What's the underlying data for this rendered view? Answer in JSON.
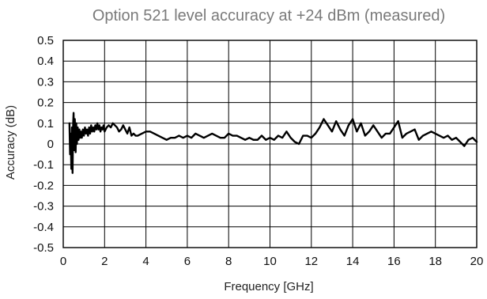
{
  "chart_data": {
    "type": "line",
    "title": "Option 521 level accuracy at +24 dBm (measured)",
    "xlabel": "Frequency [GHz]",
    "ylabel": "Accuracy (dB)",
    "xlim": [
      0,
      20
    ],
    "ylim": [
      -0.5,
      0.5
    ],
    "x_ticks": [
      0,
      2,
      4,
      6,
      8,
      10,
      12,
      14,
      16,
      18,
      20
    ],
    "x_tick_labels": [
      "0",
      "2",
      "4",
      "6",
      "8",
      "10",
      "12",
      "14",
      "16",
      "18",
      "20"
    ],
    "y_ticks": [
      0.5,
      0.4,
      0.3,
      0.2,
      0.1,
      0,
      -0.1,
      -0.2,
      -0.3,
      -0.4,
      -0.5
    ],
    "y_tick_labels": [
      "0.5",
      "0.4",
      "0.3",
      "0.2",
      "0.1",
      "0",
      "-0.1",
      "-0.2",
      "-0.3",
      "-0.4",
      "-0.5"
    ],
    "grid": true,
    "line_color": "#000000",
    "title_color": "#7a7a7a",
    "series": [
      {
        "x": [
          0.3,
          0.33,
          0.36,
          0.39,
          0.42,
          0.45,
          0.48,
          0.5,
          0.53,
          0.56,
          0.6,
          0.63,
          0.66,
          0.7,
          0.74,
          0.78,
          0.82,
          0.86,
          0.9,
          0.95,
          1.0,
          1.05,
          1.1,
          1.15,
          1.2,
          1.25,
          1.3,
          1.35,
          1.4,
          1.45,
          1.5,
          1.55,
          1.6,
          1.65,
          1.7,
          1.75,
          1.8,
          1.85,
          1.9,
          1.95,
          2.0,
          2.1,
          2.2,
          2.3,
          2.4,
          2.5,
          2.6,
          2.7,
          2.8,
          2.9,
          3.0,
          3.1,
          3.2,
          3.3,
          3.4,
          3.5,
          3.6,
          3.8,
          4.0,
          4.2,
          4.4,
          4.6,
          4.8,
          5.0,
          5.2,
          5.4,
          5.6,
          5.8,
          6.0,
          6.2,
          6.4,
          6.6,
          6.8,
          7.0,
          7.2,
          7.4,
          7.6,
          7.8,
          8.0,
          8.2,
          8.4,
          8.6,
          8.8,
          9.0,
          9.2,
          9.4,
          9.6,
          9.8,
          10.0,
          10.2,
          10.4,
          10.6,
          10.8,
          11.0,
          11.2,
          11.4,
          11.6,
          11.8,
          12.0,
          12.2,
          12.4,
          12.6,
          12.8,
          13.0,
          13.2,
          13.4,
          13.6,
          13.8,
          14.0,
          14.2,
          14.4,
          14.6,
          14.8,
          15.0,
          15.2,
          15.4,
          15.6,
          15.8,
          16.0,
          16.2,
          16.4,
          16.6,
          16.8,
          17.0,
          17.2,
          17.4,
          17.6,
          17.8,
          18.0,
          18.2,
          18.4,
          18.6,
          18.8,
          19.0,
          19.2,
          19.4,
          19.6,
          19.8,
          20.0
        ],
        "y": [
          0.1,
          -0.05,
          0.05,
          -0.12,
          0.08,
          -0.14,
          0.1,
          0.15,
          -0.03,
          0.12,
          -0.04,
          0.1,
          0.0,
          0.08,
          0.02,
          0.07,
          0.03,
          0.06,
          0.03,
          0.07,
          0.04,
          0.08,
          0.05,
          0.07,
          0.04,
          0.08,
          0.05,
          0.09,
          0.06,
          0.08,
          0.06,
          0.09,
          0.07,
          0.1,
          0.07,
          0.09,
          0.06,
          0.08,
          0.07,
          0.09,
          0.06,
          0.08,
          0.09,
          0.08,
          0.1,
          0.09,
          0.08,
          0.06,
          0.07,
          0.09,
          0.07,
          0.05,
          0.08,
          0.04,
          0.05,
          0.04,
          0.04,
          0.05,
          0.06,
          0.06,
          0.05,
          0.04,
          0.03,
          0.02,
          0.03,
          0.03,
          0.04,
          0.03,
          0.04,
          0.03,
          0.05,
          0.04,
          0.03,
          0.04,
          0.05,
          0.04,
          0.03,
          0.03,
          0.05,
          0.04,
          0.04,
          0.03,
          0.02,
          0.03,
          0.02,
          0.02,
          0.04,
          0.02,
          0.03,
          0.02,
          0.04,
          0.03,
          0.06,
          0.03,
          0.01,
          0.0,
          0.04,
          0.04,
          0.03,
          0.05,
          0.08,
          0.12,
          0.09,
          0.06,
          0.11,
          0.07,
          0.04,
          0.09,
          0.12,
          0.06,
          0.1,
          0.04,
          0.06,
          0.09,
          0.06,
          0.03,
          0.05,
          0.05,
          0.08,
          0.11,
          0.03,
          0.05,
          0.06,
          0.07,
          0.02,
          0.04,
          0.05,
          0.06,
          0.05,
          0.04,
          0.03,
          0.04,
          0.02,
          0.03,
          0.01,
          -0.01,
          0.02,
          0.03,
          0.01
        ]
      }
    ]
  }
}
